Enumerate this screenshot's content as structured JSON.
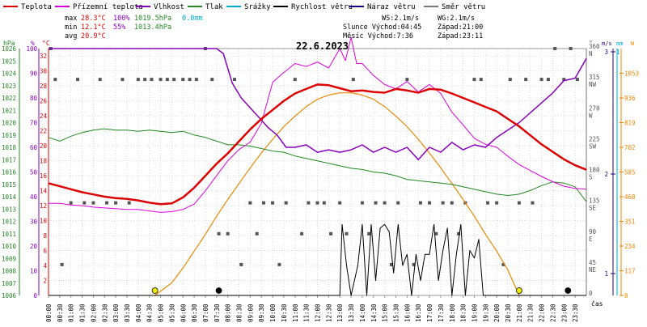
{
  "chart_data": {
    "type": "line",
    "title": "22.6.2023",
    "legend": [
      {
        "label": "Teplota",
        "color": "#dd0000"
      },
      {
        "label": "Přízemní teplota",
        "color": "#dd00dd"
      },
      {
        "label": "Vlhkost",
        "color": "#8800bb"
      },
      {
        "label": "Tlak",
        "color": "#228822"
      },
      {
        "label": "Srážky",
        "color": "#00aacc"
      },
      {
        "label": "Rychlost větru",
        "color": "#000000"
      },
      {
        "label": "Náraz větru",
        "color": "#220088"
      },
      {
        "label": "Směr větru",
        "color": "#777777"
      }
    ],
    "stats": {
      "max_label": "max",
      "max_temp": "28.3°C",
      "max_hum": "100%",
      "max_press": "1019.5hPa",
      "precip": "0.0mm",
      "min_label": "min",
      "min_temp": "12.1°C",
      "min_hum": "55%",
      "min_press": "1013.4hPa",
      "avg_label": "avg",
      "avg_temp": "20.9°C"
    },
    "info": {
      "ws": "WS:2.1m/s",
      "wg": "WG:2.1m/s",
      "sun_rise": "Slunce Východ:04:45",
      "sun_set": "Západ:21:00",
      "moon_rise": "Měsíc Východ:7:36",
      "moon_set": "Západ:23:11"
    },
    "axes": {
      "hpa_unit": "hPa",
      "pct_unit": "%",
      "c_unit": "°C",
      "dir_unit": "°",
      "ms_unit": "m/s",
      "mm_unit": "mm",
      "w_unit": "W",
      "x_unit": "čas",
      "hpa_ticks": [
        "1006",
        "1007",
        "1008",
        "1009",
        "1010",
        "1011",
        "1012",
        "1013",
        "1014",
        "1015",
        "1016",
        "1017",
        "1018",
        "1019",
        "1020",
        "1021",
        "1022",
        "1023",
        "1024",
        "1025",
        "1026"
      ],
      "pct_ticks": [
        "0",
        "10",
        "20",
        "30",
        "40",
        "50",
        "60",
        "70",
        "80",
        "90",
        "100"
      ],
      "c_ticks": [
        "2",
        "4",
        "6",
        "8",
        "10",
        "12",
        "14",
        "16",
        "18",
        "20",
        "22",
        "24",
        "26",
        "28",
        "30",
        "32"
      ],
      "dir_ticks": [
        "360",
        "315",
        "270",
        "225",
        "180",
        "135",
        "90",
        "45",
        "0"
      ],
      "dir_names": [
        "N",
        "NW",
        "W",
        "SW",
        "S",
        "SE",
        "E",
        "NE",
        ""
      ],
      "ms_ticks": [
        "1",
        "2",
        "3"
      ],
      "mm_ticks": [
        "1"
      ],
      "w_ticks": [
        "0",
        "117",
        "234",
        "351",
        "468",
        "585",
        "702",
        "819",
        "936",
        "1053"
      ],
      "hpa_range": [
        1006,
        1026
      ],
      "pct_range": [
        0,
        100
      ],
      "c_range": [
        0,
        33
      ],
      "dir_range": [
        0,
        360
      ],
      "w_range": [
        0,
        1170
      ],
      "x_ticks": [
        "00:00",
        "00:30",
        "01:00",
        "01:30",
        "02:00",
        "02:30",
        "03:00",
        "03:30",
        "04:00",
        "04:30",
        "05:00",
        "05:30",
        "06:00",
        "06:30",
        "07:00",
        "07:30",
        "08:00",
        "08:30",
        "09:00",
        "09:30",
        "10:00",
        "10:30",
        "11:00",
        "11:30",
        "12:00",
        "12:30",
        "13:00",
        "13:30",
        "14:00",
        "14:30",
        "15:00",
        "15:30",
        "16:00",
        "16:30",
        "17:00",
        "17:30",
        "18:00",
        "18:30",
        "19:00",
        "19:30",
        "20:00",
        "20:30",
        "21:00",
        "21:30",
        "22:00",
        "22:30",
        "23:00",
        "23:30"
      ],
      "x_range_hours": [
        0,
        24
      ]
    },
    "series": [
      {
        "name": "Teplota",
        "axis": "c",
        "color": "#dd0000",
        "width": 2.5,
        "x": [
          0,
          0.5,
          1,
          1.5,
          2,
          2.5,
          3,
          3.5,
          4,
          4.5,
          5,
          5.5,
          6,
          6.5,
          7,
          7.5,
          8,
          8.5,
          9,
          9.5,
          10,
          10.5,
          11,
          11.5,
          12,
          12.5,
          13,
          13.5,
          14,
          14.5,
          15,
          15.5,
          16,
          16.5,
          17,
          17.5,
          18,
          18.5,
          19,
          19.5,
          20,
          20.5,
          21,
          21.5,
          22,
          22.5,
          23,
          23.5,
          24
        ],
        "y": [
          15,
          14.6,
          14.2,
          13.8,
          13.5,
          13.2,
          13,
          12.9,
          12.7,
          12.4,
          12.2,
          12.3,
          13.1,
          14.4,
          16,
          17.6,
          19,
          20.6,
          22.2,
          23.6,
          24.8,
          26,
          27,
          27.6,
          28.2,
          28.1,
          27.7,
          27.3,
          27.4,
          27.2,
          27.1,
          27.6,
          27.4,
          27.1,
          27.6,
          27.5,
          27,
          26.4,
          25.8,
          25.2,
          24.6,
          23.6,
          22.6,
          21.4,
          20.2,
          19.2,
          18.2,
          17.4,
          16.8
        ]
      },
      {
        "name": "Přízemní teplota",
        "axis": "c",
        "color": "#dd00dd",
        "width": 1,
        "x": [
          0,
          0.5,
          1,
          1.5,
          2,
          2.5,
          3,
          3.5,
          4,
          4.5,
          5,
          5.5,
          6,
          6.5,
          7,
          7.5,
          8,
          8.5,
          9,
          9.5,
          10,
          10.5,
          11,
          11.5,
          12,
          12.5,
          13,
          13.25,
          13.5,
          13.75,
          14,
          14.5,
          15,
          15.5,
          16,
          16.5,
          17,
          17.5,
          18,
          18.5,
          19,
          19.5,
          20,
          20.5,
          21,
          21.5,
          22,
          22.5,
          23,
          23.5,
          24
        ],
        "y": [
          12.3,
          12.3,
          12.1,
          12,
          11.8,
          11.7,
          11.6,
          11.5,
          11.5,
          11.3,
          11.1,
          11.2,
          11.5,
          12.2,
          14,
          16,
          18,
          19.5,
          20.5,
          23,
          28.5,
          29.8,
          31,
          30.6,
          31.2,
          30.4,
          33,
          31.4,
          34.5,
          31,
          31,
          29.4,
          28.2,
          27.6,
          28.6,
          27.2,
          28.2,
          27,
          24.5,
          22.8,
          21,
          20.2,
          19.8,
          18.6,
          17.5,
          16.7,
          15.9,
          15.2,
          14.6,
          14.3,
          14.2
        ]
      },
      {
        "name": "Vlhkost",
        "axis": "pct",
        "color": "#8800bb",
        "width": 1.5,
        "x": [
          0,
          1,
          2,
          3,
          4,
          5,
          6,
          7,
          7.5,
          7.8,
          8.2,
          8.6,
          9,
          9.4,
          9.8,
          10.2,
          10.6,
          11,
          11.5,
          12,
          12.5,
          13,
          13.5,
          14,
          14.5,
          15,
          15.5,
          16,
          16.5,
          17,
          17.5,
          18,
          18.5,
          19,
          19.5,
          20,
          20.5,
          21,
          21.5,
          22,
          22.5,
          23,
          23.5,
          24
        ],
        "y": [
          100,
          100,
          100,
          100,
          100,
          100,
          100,
          100,
          100,
          98,
          86,
          80,
          76,
          72,
          68,
          65,
          60,
          60,
          61,
          58,
          59,
          58,
          59,
          61,
          58,
          60,
          58,
          60,
          55,
          60,
          58,
          62,
          59,
          61,
          60,
          64,
          67,
          70,
          74,
          78,
          82,
          87,
          88,
          96
        ]
      },
      {
        "name": "Tlak",
        "axis": "hpa",
        "color": "#228822",
        "width": 1,
        "x": [
          0,
          0.5,
          1,
          1.5,
          2,
          2.5,
          3,
          3.5,
          4,
          4.5,
          5,
          5.5,
          6,
          6.5,
          7,
          7.5,
          8,
          8.5,
          9,
          9.5,
          10,
          10.5,
          11,
          11.5,
          12,
          12.5,
          13,
          13.5,
          14,
          14.5,
          15,
          15.5,
          16,
          16.5,
          17,
          17.5,
          18,
          18.5,
          19,
          19.5,
          20,
          20.5,
          21,
          21.5,
          22,
          22.5,
          23,
          23.5,
          24
        ],
        "y": [
          1018.8,
          1018.5,
          1018.9,
          1019.2,
          1019.4,
          1019.5,
          1019.4,
          1019.4,
          1019.3,
          1019.4,
          1019.3,
          1019.2,
          1019.3,
          1019,
          1018.8,
          1018.5,
          1018.2,
          1018.2,
          1018.1,
          1017.9,
          1017.7,
          1017.6,
          1017.3,
          1017.1,
          1016.9,
          1016.7,
          1016.5,
          1016.3,
          1016.2,
          1016,
          1015.9,
          1015.7,
          1015.4,
          1015.3,
          1015.2,
          1015.1,
          1015,
          1014.8,
          1014.6,
          1014.4,
          1014.2,
          1014.1,
          1014.2,
          1014.5,
          1014.9,
          1015.2,
          1015.1,
          1014.8,
          1013.6
        ]
      },
      {
        "name": "Sluneční záření",
        "axis": "w",
        "color": "#ee8800",
        "width": 1.2,
        "x": [
          4.75,
          5.5,
          6,
          6.5,
          7,
          7.5,
          8,
          8.5,
          9,
          9.5,
          10,
          10.5,
          11,
          11.5,
          12,
          12.5,
          13,
          13.5,
          14,
          14.5,
          15,
          15.5,
          16,
          16.5,
          17,
          17.5,
          18,
          18.5,
          19,
          19.5,
          20,
          20.5,
          21
        ],
        "y": [
          0,
          60,
          130,
          210,
          290,
          375,
          455,
          530,
          605,
          675,
          740,
          800,
          850,
          895,
          930,
          950,
          960,
          960,
          950,
          930,
          895,
          850,
          800,
          740,
          675,
          605,
          530,
          455,
          375,
          290,
          210,
          120,
          0
        ]
      },
      {
        "name": "Rychlost větru",
        "axis": "c",
        "color": "#000000",
        "width": 1,
        "x": [
          0,
          13,
          13.1,
          13.3,
          13.5,
          13.8,
          14,
          14.2,
          14.4,
          14.6,
          14.8,
          15,
          15.2,
          15.4,
          15.6,
          15.8,
          16,
          16.2,
          16.4,
          16.6,
          16.8,
          17,
          17.2,
          17.4,
          17.6,
          17.8,
          18,
          18.2,
          18.4,
          18.6,
          18.8,
          19,
          19.2,
          19.4,
          24
        ],
        "y": [
          0,
          0,
          9.5,
          4,
          0,
          4,
          9.5,
          0,
          9.5,
          2,
          9,
          9.5,
          8.5,
          3,
          9.5,
          4,
          5.5,
          0,
          5.5,
          2,
          5.5,
          5.5,
          9.5,
          2,
          6,
          9,
          0,
          5.5,
          9.5,
          0,
          6,
          5,
          7.5,
          0,
          0
        ]
      },
      {
        "name": "Směr větru",
        "axis": "dir",
        "color": "#555555",
        "width": 0,
        "type": "scatter",
        "x": [
          0.1,
          0.3,
          0.6,
          1,
          1.3,
          1.6,
          2,
          2.3,
          2.6,
          3,
          3.3,
          3.6,
          4,
          4.3,
          4.6,
          5,
          5.3,
          5.6,
          6,
          6.3,
          6.6,
          7,
          7.3,
          7.6,
          8,
          8.3,
          8.6,
          9,
          9.3,
          9.6,
          10,
          10.3,
          10.6,
          11,
          11.3,
          11.6,
          12,
          12.3,
          12.6,
          13,
          13.3,
          13.6,
          14,
          14.3,
          14.6,
          15,
          15.3,
          15.6,
          16,
          16.3,
          16.6,
          17,
          17.3,
          17.6,
          18,
          18.3,
          18.6,
          19,
          19.3,
          19.6,
          20,
          20.3,
          20.6,
          21,
          21.3,
          21.6,
          22,
          22.3,
          22.6,
          23,
          23.3,
          23.6
        ],
        "y": [
          360,
          315,
          45,
          135,
          315,
          135,
          135,
          315,
          135,
          135,
          315,
          135,
          315,
          315,
          315,
          315,
          315,
          315,
          315,
          315,
          315,
          360,
          315,
          90,
          90,
          315,
          45,
          135,
          90,
          135,
          135,
          45,
          135,
          315,
          90,
          135,
          135,
          135,
          90,
          135,
          90,
          315,
          135,
          90,
          135,
          135,
          45,
          135,
          315,
          45,
          135,
          135,
          90,
          135,
          135,
          90,
          135,
          315,
          315,
          135,
          135,
          45,
          315,
          135,
          315,
          135,
          315,
          315,
          360,
          315,
          360,
          315
        ]
      }
    ],
    "markers": [
      {
        "name": "sunrise",
        "hour": 4.75,
        "color": "#eeee00"
      },
      {
        "name": "moonrise",
        "hour": 7.6,
        "color": "#000000"
      },
      {
        "name": "sunset",
        "hour": 21.0,
        "color": "#eeee00"
      },
      {
        "name": "moonset",
        "hour": 23.18,
        "color": "#000000"
      }
    ]
  }
}
